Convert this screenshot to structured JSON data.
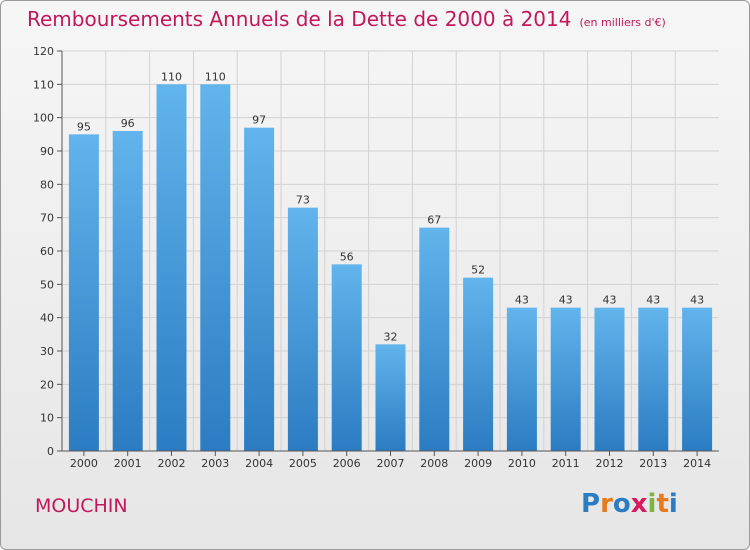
{
  "title": "Remboursements Annuels de la Dette de 2000 à 2014",
  "subtitle": "(en milliers d'€)",
  "commune": "MOUCHIN",
  "brand": "Proxiti",
  "colors": {
    "bar_top": "#62b4ec",
    "bar_bottom": "#2b7cc2",
    "title": "#c2185b",
    "grid": "#d2d2d2",
    "text": "#333333"
  },
  "chart_data": {
    "type": "bar",
    "title": "Remboursements Annuels de la Dette de 2000 à 2014",
    "subtitle": "(en milliers d'€)",
    "categories": [
      "2000",
      "2001",
      "2002",
      "2003",
      "2004",
      "2005",
      "2006",
      "2007",
      "2008",
      "2009",
      "2010",
      "2011",
      "2012",
      "2013",
      "2014"
    ],
    "values": [
      95,
      96,
      110,
      110,
      97,
      73,
      56,
      32,
      67,
      52,
      43,
      43,
      43,
      43,
      43
    ],
    "ylim": [
      0,
      120
    ],
    "yticks": [
      0,
      10,
      20,
      30,
      40,
      50,
      60,
      70,
      80,
      90,
      100,
      110,
      120
    ],
    "xlabel": "",
    "ylabel": "",
    "grid": true,
    "data_labels": true
  }
}
